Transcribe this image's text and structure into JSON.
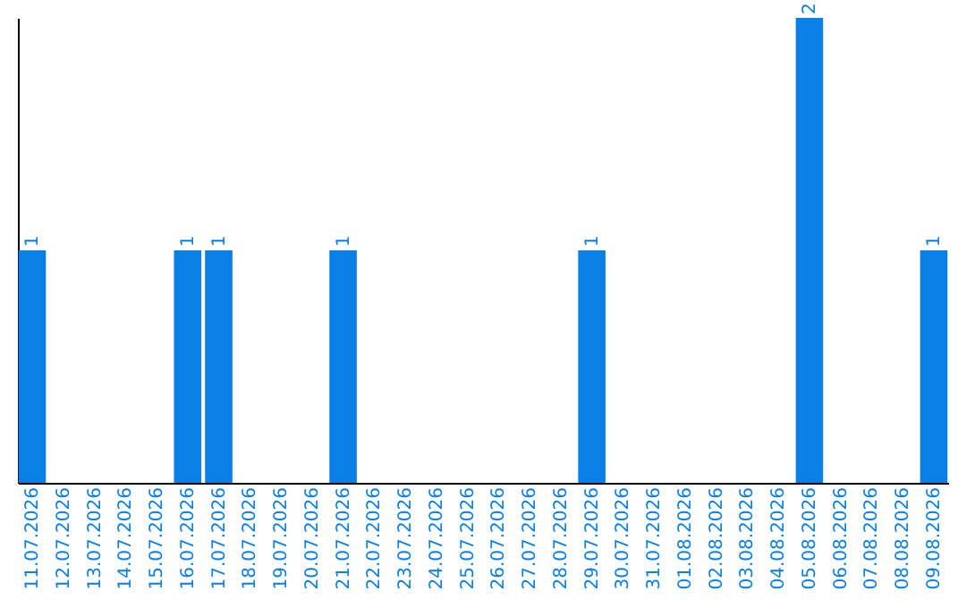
{
  "chart_data": {
    "type": "bar",
    "categories": [
      "11.07.2026",
      "12.07.2026",
      "13.07.2026",
      "14.07.2026",
      "15.07.2026",
      "16.07.2026",
      "17.07.2026",
      "18.07.2026",
      "19.07.2026",
      "20.07.2026",
      "21.07.2026",
      "22.07.2026",
      "23.07.2026",
      "24.07.2026",
      "25.07.2026",
      "26.07.2026",
      "27.07.2026",
      "28.07.2026",
      "29.07.2026",
      "30.07.2026",
      "31.07.2026",
      "01.08.2026",
      "02.08.2026",
      "03.08.2026",
      "04.08.2026",
      "05.08.2026",
      "06.08.2026",
      "07.08.2026",
      "08.08.2026",
      "09.08.2026"
    ],
    "values": [
      1,
      0,
      0,
      0,
      0,
      1,
      1,
      0,
      0,
      0,
      1,
      0,
      0,
      0,
      0,
      0,
      0,
      0,
      1,
      0,
      0,
      0,
      0,
      0,
      0,
      2,
      0,
      0,
      0,
      1
    ],
    "value_labels": [
      "1",
      null,
      null,
      null,
      null,
      "1",
      "1",
      null,
      null,
      null,
      "1",
      null,
      null,
      null,
      null,
      null,
      null,
      null,
      "1",
      null,
      null,
      null,
      null,
      null,
      null,
      "2",
      null,
      null,
      null,
      "1"
    ],
    "color": "#0a7fe6",
    "tick_labels": "x",
    "grid": false
  }
}
